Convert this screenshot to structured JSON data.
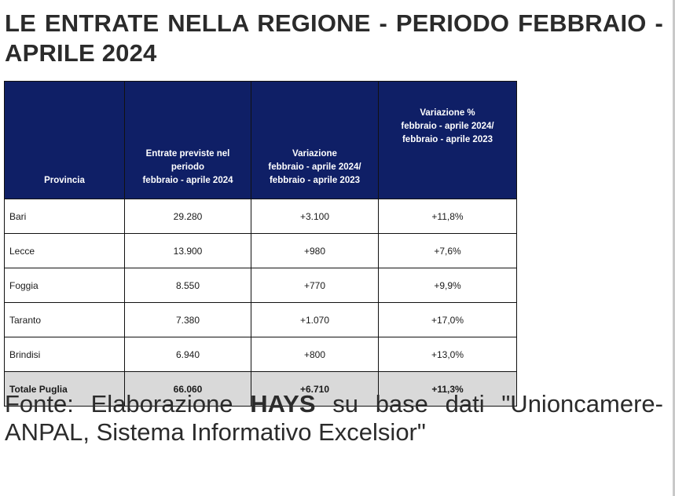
{
  "title": "LE ENTRATE NELLA REGIONE - PERIODO FEBBRAIO - APRILE 2024",
  "table": {
    "headers": [
      "Provincia",
      "Entrate previste nel\nperiodo\nfebbraio - aprile 2024",
      "Variazione\nfebbraio - aprile 2024/\nfebbraio - aprile 2023",
      "Variazione %\nfebbraio - aprile 2024/\nfebbraio - aprile 2023"
    ],
    "rows": [
      [
        "Bari",
        "29.280",
        "+3.100",
        "+11,8%"
      ],
      [
        "Lecce",
        "13.900",
        "+980",
        "+7,6%"
      ],
      [
        "Foggia",
        "8.550",
        "+770",
        "+9,9%"
      ],
      [
        "Taranto",
        "7.380",
        "+1.070",
        "+17,0%"
      ],
      [
        "Brindisi",
        "6.940",
        "+800",
        "+13,0%"
      ]
    ],
    "total": [
      "Totale Puglia",
      "66.060",
      "+6.710",
      "+11,3%"
    ]
  },
  "source": {
    "prefix": "Fonte: Elaborazione ",
    "brand": "HAYS",
    "suffix": " su base dati \"Unioncamere-ANPAL, Sistema Informativo Excelsior\""
  },
  "colors": {
    "header_bg": "#0f1f66",
    "total_bg": "#d9d9d9"
  }
}
